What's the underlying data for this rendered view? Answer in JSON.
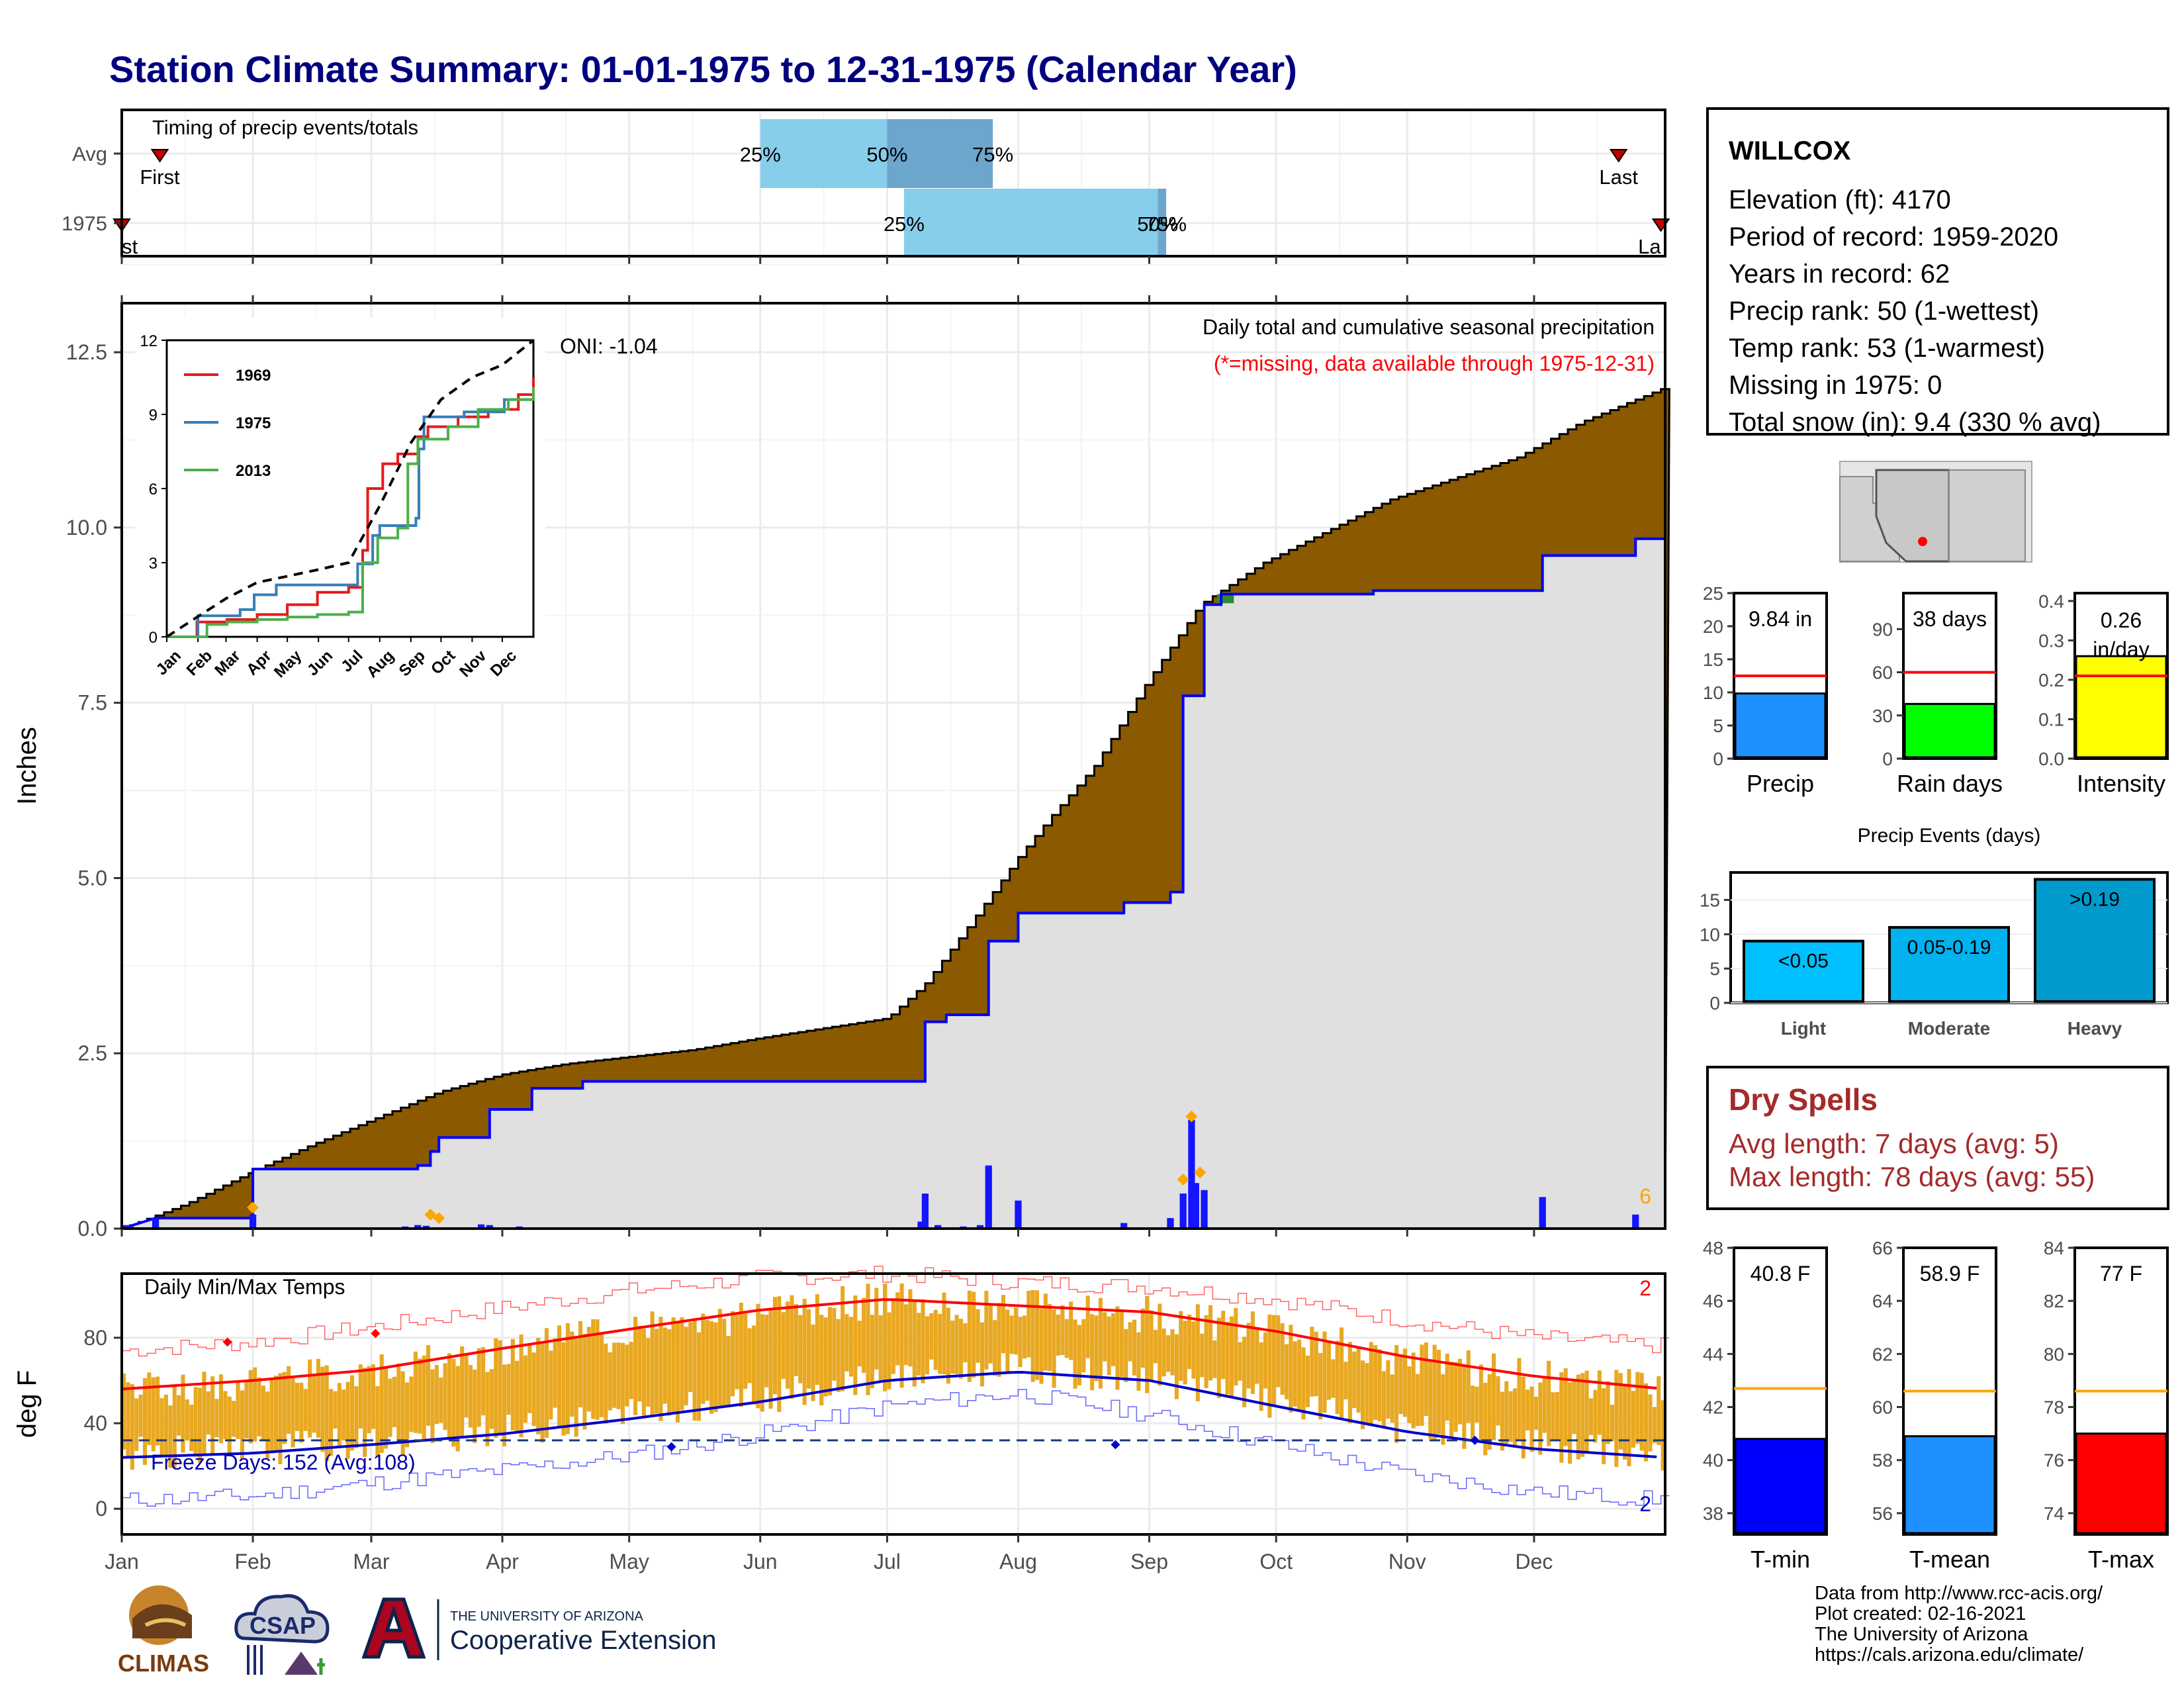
{
  "title": "Station Climate Summary: 01-01-1975 to 12-31-1975 (Calendar Year)",
  "colors": {
    "brown": "#8b5a00",
    "light_gray": "#e0e0e0",
    "blue_line": "#0000ff",
    "light_blue": "#87ceeb",
    "steel_blue": "#6ca6cd",
    "orange": "#e8a821",
    "red": "#ff0000",
    "green": "#00ff00",
    "yellow": "#ffff00",
    "event_blue": "#00b2ee",
    "title_navy": "#00007f",
    "dry_red": "#a52a2a"
  },
  "station": {
    "name": "WILLCOX",
    "lines": [
      "Elevation (ft): 4170",
      "Period of record: 1959-2020",
      "Years in record: 62",
      "Precip rank: 50 (1-wettest)",
      "Temp rank: 53 (1-warmest)",
      "Missing in 1975: 0",
      "Total snow (in): 9.4 (330 % avg)"
    ]
  },
  "dry_spells": {
    "title": "Dry Spells",
    "avg": "Avg length: 7 days (avg: 5)",
    "max": "Max length: 78 days (avg: 55)"
  },
  "credits": [
    "Data from http://www.rcc-acis.org/",
    "Plot created: 02-16-2021",
    "The University of Arizona",
    "https://cals.arizona.edu/climate/"
  ],
  "logos": {
    "climas": "CLIMAS",
    "csap": "CSAP",
    "ua_small": "THE UNIVERSITY OF ARIZONA",
    "ua_big": "Cooperative Extension"
  },
  "chart_data": [
    {
      "id": "timing",
      "type": "bar",
      "title": "Timing of precip events/totals",
      "categories": [
        "Avg",
        "1975"
      ],
      "percent_labels": [
        "25%",
        "50%",
        "75%"
      ],
      "rows": [
        {
          "name": "Avg",
          "first": "Jan 10",
          "last": "Dec 21",
          "first_label": "First",
          "last_label": "Last",
          "p25": "Jun 1",
          "p50": "Jul 1",
          "p75": "Jul 26"
        },
        {
          "name": "1975",
          "first": "Jan 1",
          "last": "Dec 31",
          "first_label": "st",
          "last_label": "La",
          "p25": "Jul 5",
          "p50": "Sep 3",
          "p75": "Sep 5"
        }
      ]
    },
    {
      "id": "cumulative_precip",
      "type": "area",
      "title": "Daily total and cumulative seasonal precipitation",
      "subtitle": "(*=missing, data available through 1975-12-31)",
      "ylabel": "Inches",
      "ylim": [
        0,
        13.2
      ],
      "yticks": [
        "0.0",
        "2.5",
        "5.0",
        "7.5",
        "10.0",
        "12.5"
      ],
      "corner_count": "6",
      "oni": "ONI: -1.04",
      "avg_cumulative": [
        [
          0,
          0
        ],
        [
          15,
          0.35
        ],
        [
          31,
          0.82
        ],
        [
          45,
          1.2
        ],
        [
          59,
          1.55
        ],
        [
          75,
          1.95
        ],
        [
          90,
          2.2
        ],
        [
          105,
          2.35
        ],
        [
          120,
          2.45
        ],
        [
          135,
          2.55
        ],
        [
          151,
          2.72
        ],
        [
          165,
          2.85
        ],
        [
          181,
          3.0
        ],
        [
          190,
          3.5
        ],
        [
          200,
          4.3
        ],
        [
          212,
          5.3
        ],
        [
          220,
          5.9
        ],
        [
          230,
          6.6
        ],
        [
          243,
          7.85
        ],
        [
          255,
          8.9
        ],
        [
          270,
          9.5
        ],
        [
          285,
          9.95
        ],
        [
          300,
          10.4
        ],
        [
          315,
          10.7
        ],
        [
          330,
          11.0
        ],
        [
          345,
          11.5
        ],
        [
          365,
          12.0
        ]
      ],
      "cumulative_1975": [
        [
          0,
          0
        ],
        [
          8,
          0.15
        ],
        [
          31,
          0.15
        ],
        [
          31,
          0.85
        ],
        [
          70,
          0.85
        ],
        [
          70,
          0.9
        ],
        [
          73,
          0.9
        ],
        [
          73,
          1.1
        ],
        [
          75,
          1.1
        ],
        [
          75,
          1.3
        ],
        [
          87,
          1.3
        ],
        [
          87,
          1.7
        ],
        [
          97,
          1.7
        ],
        [
          97,
          2.0
        ],
        [
          109,
          2.0
        ],
        [
          109,
          2.1
        ],
        [
          190,
          2.1
        ],
        [
          190,
          2.95
        ],
        [
          195,
          2.95
        ],
        [
          195,
          3.05
        ],
        [
          205,
          3.05
        ],
        [
          205,
          4.1
        ],
        [
          212,
          4.1
        ],
        [
          212,
          4.5
        ],
        [
          237,
          4.5
        ],
        [
          237,
          4.65
        ],
        [
          248,
          4.65
        ],
        [
          248,
          4.8
        ],
        [
          251,
          4.8
        ],
        [
          251,
          7.6
        ],
        [
          256,
          7.6
        ],
        [
          256,
          8.9
        ],
        [
          260,
          8.9
        ],
        [
          260,
          9.05
        ],
        [
          296,
          9.05
        ],
        [
          296,
          9.1
        ],
        [
          336,
          9.1
        ],
        [
          336,
          9.6
        ],
        [
          358,
          9.6
        ],
        [
          358,
          9.84
        ],
        [
          365,
          9.84
        ]
      ],
      "daily_1975": [
        [
          1,
          0.05
        ],
        [
          2,
          0.04
        ],
        [
          8,
          0.15
        ],
        [
          31,
          0.2
        ],
        [
          67,
          0.03
        ],
        [
          70,
          0.05
        ],
        [
          72,
          0.04
        ],
        [
          85,
          0.06
        ],
        [
          87,
          0.05
        ],
        [
          94,
          0.03
        ],
        [
          189,
          0.1
        ],
        [
          190,
          0.5
        ],
        [
          193,
          0.05
        ],
        [
          199,
          0.03
        ],
        [
          203,
          0.05
        ],
        [
          205,
          0.9
        ],
        [
          212,
          0.4
        ],
        [
          237,
          0.08
        ],
        [
          248,
          0.15
        ],
        [
          251,
          0.5
        ],
        [
          253,
          1.55
        ],
        [
          254,
          0.65
        ],
        [
          256,
          0.55
        ],
        [
          336,
          0.45
        ],
        [
          358,
          0.2
        ]
      ],
      "events_orange": [
        [
          31,
          0.3
        ],
        [
          73,
          0.2
        ],
        [
          75,
          0.15
        ],
        [
          251,
          0.7
        ],
        [
          253,
          1.6
        ],
        [
          255,
          0.8
        ]
      ]
    },
    {
      "id": "inset_cumulative",
      "type": "line",
      "ylim": [
        0,
        12
      ],
      "yticks": [
        "0",
        "3",
        "6",
        "9",
        "12"
      ],
      "categories": [
        "Jan",
        "Feb",
        "Mar",
        "Apr",
        "May",
        "Jun",
        "Jul",
        "Aug",
        "Sep",
        "Oct",
        "Nov",
        "Dec"
      ],
      "series": [
        {
          "name": "1969",
          "color": "#e41a1c",
          "values": [
            [
              0,
              0
            ],
            [
              30,
              0.6
            ],
            [
              60,
              0.7
            ],
            [
              90,
              0.9
            ],
            [
              120,
              1.3
            ],
            [
              150,
              1.8
            ],
            [
              181,
              2.0
            ],
            [
              195,
              3.5
            ],
            [
              200,
              6.0
            ],
            [
              215,
              7.0
            ],
            [
              230,
              7.4
            ],
            [
              250,
              8.1
            ],
            [
              260,
              8.5
            ],
            [
              290,
              8.9
            ],
            [
              320,
              9.2
            ],
            [
              350,
              9.8
            ],
            [
              365,
              10.5
            ]
          ]
        },
        {
          "name": "1975",
          "color": "#377eb8",
          "values": [
            [
              0,
              0
            ],
            [
              31,
              0.85
            ],
            [
              73,
              1.1
            ],
            [
              87,
              1.7
            ],
            [
              109,
              2.1
            ],
            [
              190,
              2.95
            ],
            [
              205,
              4.1
            ],
            [
              212,
              4.5
            ],
            [
              248,
              4.8
            ],
            [
              251,
              7.6
            ],
            [
              256,
              8.9
            ],
            [
              296,
              9.1
            ],
            [
              336,
              9.6
            ],
            [
              365,
              9.84
            ]
          ]
        },
        {
          "name": "2013",
          "color": "#4daf4a",
          "values": [
            [
              0,
              0
            ],
            [
              40,
              0.5
            ],
            [
              60,
              0.6
            ],
            [
              90,
              0.7
            ],
            [
              120,
              0.8
            ],
            [
              150,
              0.9
            ],
            [
              181,
              1.0
            ],
            [
              195,
              3.0
            ],
            [
              210,
              4.0
            ],
            [
              230,
              4.4
            ],
            [
              240,
              7.0
            ],
            [
              250,
              8.0
            ],
            [
              280,
              8.5
            ],
            [
              310,
              9.2
            ],
            [
              340,
              9.6
            ],
            [
              365,
              10.1
            ]
          ]
        },
        {
          "name": "avg",
          "color": "#000000",
          "values": [
            [
              0,
              0
            ],
            [
              31,
              0.82
            ],
            [
              59,
              1.55
            ],
            [
              90,
              2.2
            ],
            [
              120,
              2.45
            ],
            [
              151,
              2.72
            ],
            [
              181,
              3.0
            ],
            [
              212,
              5.3
            ],
            [
              243,
              7.85
            ],
            [
              273,
              9.6
            ],
            [
              304,
              10.5
            ],
            [
              334,
              11.0
            ],
            [
              365,
              12.0
            ]
          ]
        }
      ]
    },
    {
      "id": "daily_temps",
      "type": "bar",
      "title": "Daily Min/Max Temps",
      "ylabel": "deg F",
      "ylim": [
        -12,
        110
      ],
      "yticks": [
        "0",
        "40",
        "80"
      ],
      "freeze_label": "Freeze Days: 152 (Avg:108)",
      "freeze_line": 32,
      "count_top": "2",
      "count_bottom": "2",
      "avg_max": [
        [
          0,
          56
        ],
        [
          31,
          60
        ],
        [
          59,
          65
        ],
        [
          90,
          75
        ],
        [
          120,
          84
        ],
        [
          151,
          93
        ],
        [
          181,
          98
        ],
        [
          212,
          95
        ],
        [
          243,
          92
        ],
        [
          273,
          83
        ],
        [
          304,
          71
        ],
        [
          334,
          62
        ],
        [
          365,
          56
        ]
      ],
      "avg_min": [
        [
          0,
          24
        ],
        [
          31,
          26
        ],
        [
          59,
          30
        ],
        [
          90,
          35
        ],
        [
          120,
          42
        ],
        [
          151,
          50
        ],
        [
          181,
          60
        ],
        [
          212,
          64
        ],
        [
          243,
          60
        ],
        [
          273,
          48
        ],
        [
          304,
          36
        ],
        [
          334,
          28
        ],
        [
          365,
          24
        ]
      ],
      "rec_max": [
        [
          0,
          74
        ],
        [
          31,
          78
        ],
        [
          59,
          85
        ],
        [
          90,
          94
        ],
        [
          120,
          102
        ],
        [
          151,
          108
        ],
        [
          181,
          110
        ],
        [
          212,
          106
        ],
        [
          243,
          104
        ],
        [
          273,
          98
        ],
        [
          304,
          88
        ],
        [
          334,
          80
        ],
        [
          365,
          76
        ]
      ],
      "rec_min": [
        [
          0,
          4
        ],
        [
          31,
          6
        ],
        [
          59,
          12
        ],
        [
          90,
          18
        ],
        [
          120,
          25
        ],
        [
          151,
          35
        ],
        [
          181,
          48
        ],
        [
          212,
          54
        ],
        [
          243,
          44
        ],
        [
          273,
          30
        ],
        [
          304,
          16
        ],
        [
          334,
          8
        ],
        [
          365,
          4
        ]
      ],
      "records_red": [
        [
          25,
          78
        ],
        [
          60,
          82
        ]
      ],
      "records_blue": [
        [
          130,
          29
        ],
        [
          235,
          30
        ],
        [
          320,
          32
        ]
      ]
    },
    {
      "id": "months",
      "type": "table",
      "labels": [
        "Jan",
        "Feb",
        "Mar",
        "Apr",
        "May",
        "Jun",
        "Jul",
        "Aug",
        "Sep",
        "Oct",
        "Nov",
        "Dec"
      ]
    },
    {
      "id": "precip_totals",
      "type": "bar",
      "panels": [
        {
          "name": "Precip",
          "label": "9.84 in",
          "value": 9.84,
          "avg": 12.5,
          "ylim": [
            0,
            25
          ],
          "ticks": [
            0,
            5,
            10,
            15,
            20,
            25
          ],
          "color": "#1e90ff"
        },
        {
          "name": "Rain days",
          "label": "38 days",
          "value": 38,
          "avg": 60,
          "ylim": [
            0,
            115
          ],
          "ticks": [
            0,
            30,
            60,
            90
          ],
          "color": "#00ff00"
        },
        {
          "name": "Intensity",
          "label": "0.26 in/day",
          "value": 0.26,
          "avg": 0.21,
          "ylim": [
            0,
            0.42
          ],
          "ticks": [
            "0.0",
            "0.1",
            "0.2",
            "0.3",
            "0.4"
          ],
          "color": "#ffff00"
        }
      ]
    },
    {
      "id": "precip_events",
      "type": "bar",
      "title": "Precip Events (days)",
      "categories": [
        "Light",
        "Moderate",
        "Heavy"
      ],
      "bar_labels": [
        "<0.05",
        "0.05-0.19",
        ">0.19"
      ],
      "values": [
        9,
        11,
        18
      ],
      "ylim": [
        0,
        19
      ],
      "yticks": [
        0,
        5,
        10,
        15
      ],
      "colors": [
        "#00bfff",
        "#00b2ee",
        "#009acd"
      ]
    },
    {
      "id": "temp_means",
      "type": "bar",
      "panels": [
        {
          "name": "T-min",
          "label": "40.8 F",
          "value": 40.8,
          "avg": 42.7,
          "ylim": [
            37.2,
            48
          ],
          "ticks": [
            38,
            40,
            42,
            44,
            46,
            48
          ],
          "color": "#0000ff"
        },
        {
          "name": "T-mean",
          "label": "58.9 F",
          "value": 58.9,
          "avg": 60.6,
          "ylim": [
            55.2,
            66
          ],
          "ticks": [
            56,
            58,
            60,
            62,
            64,
            66
          ],
          "color": "#1e90ff"
        },
        {
          "name": "T-max",
          "label": "77 F",
          "value": 77,
          "avg": 78.6,
          "ylim": [
            73.2,
            84
          ],
          "ticks": [
            74,
            76,
            78,
            80,
            82,
            84
          ],
          "color": "#ff0000"
        }
      ]
    }
  ]
}
